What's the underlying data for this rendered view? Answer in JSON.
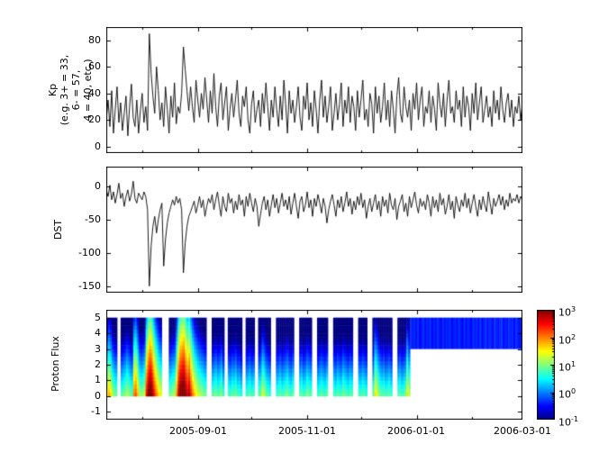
{
  "figure": {
    "background": "#ffffff",
    "line_color": "#000000",
    "frame_color": "#000000"
  },
  "kp_axis": {
    "ylabel_lines": [
      "Kp",
      "(e.g. 3+ = 33,",
      "6- = 57,",
      "4 = 40, etc.)"
    ],
    "yticks": [
      "0",
      "20",
      "40",
      "60",
      "80"
    ]
  },
  "dst_axis": {
    "ylabel": "DST",
    "yticks": [
      "0",
      "-50",
      "-100",
      "-150"
    ]
  },
  "flux_axis": {
    "ylabel": "Proton Flux",
    "yticks": [
      "-1",
      "0",
      "1",
      "2",
      "3",
      "4",
      "5"
    ]
  },
  "xticklabels": [
    "2005-09-01",
    "2005-11-01",
    "2006-01-01",
    "2006-03-01"
  ],
  "colorbar_ticks": [
    {
      "base": "10",
      "exp": "3"
    },
    {
      "base": "10",
      "exp": "2"
    },
    {
      "base": "10",
      "exp": "1"
    },
    {
      "base": "10",
      "exp": "0"
    },
    {
      "base": "10",
      "exp": "-1"
    }
  ],
  "chart_data": [
    {
      "type": "line",
      "name": "Kp",
      "ylabel": "Kp (e.g. 3+ = 33, 6- = 57, 4 = 40, etc.)",
      "x_start": "2005-07-12",
      "x_end": "2006-03-01",
      "x_unit": "day",
      "total_days": 232,
      "ylim": [
        -5,
        90
      ],
      "ytick_values": [
        0,
        20,
        40,
        60,
        80
      ],
      "xtick_major_days": [
        51,
        112,
        173,
        232
      ],
      "xtick_minor_days": [
        20,
        81,
        142,
        204
      ],
      "grid": false,
      "values": [
        20,
        35,
        15,
        42,
        10,
        28,
        45,
        18,
        33,
        12,
        25,
        38,
        8,
        30,
        47,
        22,
        15,
        35,
        10,
        27,
        40,
        18,
        30,
        12,
        85,
        55,
        38,
        25,
        60,
        42,
        20,
        33,
        15,
        45,
        28,
        10,
        38,
        22,
        48,
        17,
        30,
        25,
        40,
        75,
        58,
        42,
        27,
        45,
        30,
        18,
        50,
        35,
        22,
        40,
        28,
        52,
        35,
        18,
        42,
        25,
        55,
        30,
        15,
        38,
        48,
        20,
        33,
        45,
        12,
        28,
        40,
        22,
        35,
        50,
        25,
        15,
        38,
        30,
        45,
        20,
        10,
        32,
        42,
        18,
        28,
        35,
        15,
        40,
        25,
        48,
        30,
        12,
        35,
        22,
        45,
        28,
        15,
        38,
        20,
        50,
        32,
        10,
        42,
        25,
        35,
        18,
        30,
        45,
        22,
        12,
        38,
        28,
        48,
        20,
        33,
        15,
        42,
        28,
        10,
        35,
        50,
        22,
        38,
        18,
        30,
        45,
        12,
        25,
        40,
        20,
        32,
        48,
        15,
        35,
        25,
        45,
        18,
        38,
        30,
        12,
        42,
        22,
        35,
        50,
        20,
        28,
        15,
        40,
        32,
        10,
        45,
        25,
        38,
        18,
        30,
        48,
        20,
        35,
        15,
        42,
        28,
        10,
        38,
        52,
        25,
        18,
        45,
        30,
        22,
        35,
        12,
        40,
        28,
        48,
        20,
        35,
        45,
        15,
        30,
        25,
        42,
        18,
        38,
        28,
        12,
        48,
        32,
        22,
        40,
        15,
        35,
        50,
        25,
        30,
        18,
        42,
        28,
        35,
        15,
        45,
        22,
        38,
        30,
        12,
        40,
        25,
        48,
        20,
        33,
        45,
        18,
        28,
        38,
        22,
        30,
        15,
        42,
        25,
        35,
        20,
        45,
        28,
        18,
        33,
        40,
        22,
        35,
        15,
        30,
        25,
        38,
        20,
        32
      ]
    },
    {
      "type": "line",
      "name": "DST",
      "ylabel": "DST",
      "ylim": [
        -160,
        30
      ],
      "ytick_values": [
        0,
        -50,
        -100,
        -150
      ],
      "grid": false,
      "values": [
        -5,
        -15,
        2,
        -20,
        -8,
        -25,
        -12,
        5,
        -18,
        -10,
        -30,
        -15,
        -5,
        -22,
        -12,
        8,
        -18,
        -25,
        -10,
        -15,
        -20,
        -8,
        -15,
        -35,
        -150,
        -90,
        -60,
        -45,
        -70,
        -50,
        -35,
        -25,
        -120,
        -80,
        -55,
        -40,
        -30,
        -20,
        -28,
        -15,
        -25,
        -18,
        -35,
        -130,
        -85,
        -60,
        -45,
        -38,
        -30,
        -22,
        -40,
        -28,
        -15,
        -32,
        -20,
        -45,
        -30,
        -18,
        -25,
        -12,
        -35,
        -20,
        -8,
        -28,
        -45,
        -15,
        -30,
        -38,
        -10,
        -25,
        -18,
        -40,
        -22,
        -35,
        -12,
        -28,
        -20,
        -45,
        -15,
        -30,
        -10,
        -25,
        -38,
        -18,
        -30,
        -60,
        -42,
        -25,
        -15,
        -35,
        -20,
        -45,
        -28,
        -12,
        -32,
        -18,
        -40,
        -25,
        -10,
        -30,
        -20,
        -35,
        -15,
        -42,
        -25,
        -10,
        -30,
        -48,
        -22,
        -15,
        -38,
        -28,
        -8,
        -32,
        -20,
        -45,
        -18,
        -30,
        -12,
        -25,
        -40,
        -18,
        -30,
        -55,
        -35,
        -22,
        -12,
        -28,
        -45,
        -20,
        -32,
        -15,
        -38,
        -25,
        -8,
        -30,
        -18,
        -42,
        -22,
        -35,
        -15,
        -28,
        -10,
        -32,
        -20,
        -48,
        -30,
        -18,
        -38,
        -25,
        -12,
        -35,
        -22,
        -45,
        -15,
        -30,
        -20,
        -40,
        -10,
        -28,
        -35,
        -18,
        -50,
        -30,
        -22,
        -12,
        -38,
        -25,
        -45,
        -15,
        -32,
        -20,
        -8,
        -28,
        -40,
        -18,
        -30,
        -22,
        -35,
        -12,
        -25,
        -45,
        -15,
        -32,
        -20,
        -38,
        -10,
        -28,
        -18,
        -42,
        -30,
        -12,
        -35,
        -22,
        -48,
        -15,
        -28,
        -38,
        -20,
        -30,
        -10,
        -32,
        -18,
        -40,
        -25,
        -12,
        -30,
        -45,
        -20,
        -35,
        -15,
        -28,
        -38,
        -8,
        -25,
        -42,
        -18,
        -30,
        -22,
        -12,
        -28,
        -15,
        -35,
        -20,
        -30,
        -10,
        -25,
        -18,
        -22,
        -12,
        -25,
        -15,
        -20
      ]
    },
    {
      "type": "heatmap",
      "name": "Proton Flux",
      "ylabel": "Proton Flux",
      "ylim": [
        -1.5,
        5.5
      ],
      "ytick_values": [
        -1,
        0,
        1,
        2,
        3,
        4,
        5
      ],
      "colormap": "jet",
      "scale": "log10",
      "clim": [
        -1,
        3
      ],
      "column_span_y": [
        0,
        5
      ],
      "band_span_y": [
        3,
        5
      ],
      "band_from_day": 170,
      "decay_per_y": 0.5,
      "column_bottom_log10": [
        1.5,
        1.8,
        1.6,
        1.2,
        1.0,
        0.9,
        null,
        null,
        0.8,
        0.9,
        1.0,
        1.2,
        1.1,
        0.9,
        0.8,
        2.0,
        2.2,
        1.8,
        1.2,
        1.0,
        1.1,
        1.3,
        2.5,
        3.0,
        3.3,
        3.1,
        2.6,
        2.2,
        1.9,
        1.6,
        1.4,
        null,
        null,
        null,
        null,
        0.9,
        1.0,
        1.1,
        1.2,
        2.0,
        2.8,
        3.2,
        3.3,
        3.4,
        3.0,
        2.7,
        2.9,
        2.4,
        2.0,
        1.7,
        1.5,
        1.3,
        1.2,
        1.1,
        1.0,
        0.9,
        null,
        null,
        null,
        0.8,
        0.9,
        1.0,
        0.8,
        0.9,
        1.1,
        0.7,
        null,
        null,
        0.8,
        0.7,
        0.9,
        0.8,
        1.0,
        0.7,
        0.8,
        0.6,
        null,
        null,
        0.7,
        0.8,
        0.9,
        0.7,
        0.8,
        null,
        null,
        0.8,
        0.9,
        1.4,
        1.2,
        0.9,
        0.8,
        0.7,
        null,
        null,
        null,
        0.7,
        0.8,
        0.9,
        0.7,
        0.8,
        0.9,
        1.0,
        0.8,
        0.7,
        0.9,
        null,
        null,
        null,
        0.8,
        0.9,
        0.7,
        0.8,
        1.0,
        0.9,
        0.8,
        null,
        null,
        null,
        0.7,
        0.8,
        0.9,
        0.8,
        0.7,
        0.9,
        null,
        null,
        null,
        0.8,
        0.7,
        0.9,
        0.8,
        0.7,
        1.0,
        0.9,
        0.8,
        0.7,
        0.9,
        0.8,
        null,
        null,
        null,
        0.8,
        0.7,
        0.9,
        0.8,
        0.7,
        null,
        null,
        null,
        0.8,
        1.6,
        1.4,
        1.1,
        0.9,
        0.8,
        0.9,
        0.7,
        0.8,
        0.9,
        0.7,
        null,
        null,
        null,
        0.8,
        0.9,
        0.7,
        0.8,
        0.9,
        1.6,
        1.2,
        -0.3,
        -0.4,
        -0.35,
        -0.45,
        -0.3,
        -0.5,
        -0.4,
        -0.3,
        -0.45,
        -0.35,
        -0.4,
        -0.3,
        -0.5,
        -0.35,
        -0.45,
        -0.3,
        -0.4,
        -0.5,
        -0.3,
        -0.45,
        -0.35,
        -0.4,
        -0.3,
        -0.5,
        -0.4,
        -0.35,
        -0.45,
        -0.3,
        -0.4,
        -0.5,
        -0.3,
        -0.45,
        -0.35,
        -0.4,
        -0.5,
        -0.3,
        -0.4,
        -0.35,
        -0.45,
        -0.3,
        -0.5,
        -0.4,
        -0.3,
        -0.45,
        -0.35,
        -0.4,
        -0.5,
        -0.3,
        -0.4,
        -0.45,
        -0.35,
        -0.3,
        -0.5,
        -0.4,
        -0.45,
        -0.3,
        -0.4,
        -0.35,
        -0.5,
        -0.3,
        -0.4,
        -0.45,
        -0.35
      ]
    }
  ]
}
